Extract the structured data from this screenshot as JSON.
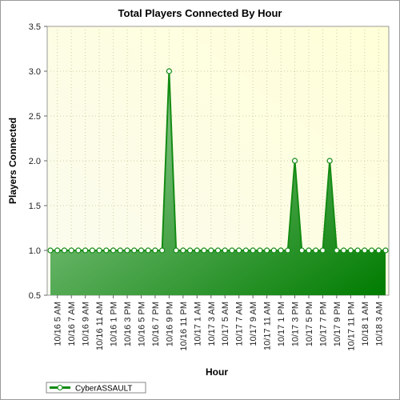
{
  "chart_data": {
    "type": "area",
    "title": "Total Players Connected By Hour",
    "xlabel": "Hour",
    "ylabel": "Players Connected",
    "ylim": [
      0.5,
      3.5
    ],
    "yticks": [
      "0.5",
      "1.0",
      "1.5",
      "2.0",
      "2.5",
      "3.0",
      "3.5"
    ],
    "x": [
      "10/16 4 AM",
      "10/16 5 AM",
      "10/16 6 AM",
      "10/16 7 AM",
      "10/16 8 AM",
      "10/16 9 AM",
      "10/16 10 AM",
      "10/16 11 AM",
      "10/16 12 PM",
      "10/16 1 PM",
      "10/16 2 PM",
      "10/16 3 PM",
      "10/16 4 PM",
      "10/16 5 PM",
      "10/16 6 PM",
      "10/16 7 PM",
      "10/16 8 PM",
      "10/16 9 PM",
      "10/16 10 PM",
      "10/16 11 PM",
      "10/17 12 AM",
      "10/17 1 AM",
      "10/17 2 AM",
      "10/17 3 AM",
      "10/17 4 AM",
      "10/17 5 AM",
      "10/17 6 AM",
      "10/17 7 AM",
      "10/17 8 AM",
      "10/17 9 AM",
      "10/17 10 AM",
      "10/17 11 AM",
      "10/17 12 PM",
      "10/17 1 PM",
      "10/17 2 PM",
      "10/17 3 PM",
      "10/17 4 PM",
      "10/17 5 PM",
      "10/17 6 PM",
      "10/17 7 PM",
      "10/17 8 PM",
      "10/17 9 PM",
      "10/17 10 PM",
      "10/17 11 PM",
      "10/18 12 AM",
      "10/18 1 AM",
      "10/18 2 AM",
      "10/18 3 AM",
      "10/18 4 AM"
    ],
    "xtick_labels": [
      "10/16 5 AM",
      "10/16 7 AM",
      "10/16 9 AM",
      "10/16 11 AM",
      "10/16 1 PM",
      "10/16 3 PM",
      "10/16 5 PM",
      "10/16 7 PM",
      "10/16 9 PM",
      "10/16 11 PM",
      "10/17 1 AM",
      "10/17 3 AM",
      "10/17 5 AM",
      "10/17 7 AM",
      "10/17 9 AM",
      "10/17 11 AM",
      "10/17 1 PM",
      "10/17 3 PM",
      "10/17 5 PM",
      "10/17 7 PM",
      "10/17 9 PM",
      "10/17 11 PM",
      "10/18 1 AM",
      "10/18 3 AM"
    ],
    "series": [
      {
        "name": "CyberASSAULT",
        "values": [
          1,
          1,
          1,
          1,
          1,
          1,
          1,
          1,
          1,
          1,
          1,
          1,
          1,
          1,
          1,
          1,
          1,
          3,
          1,
          1,
          1,
          1,
          1,
          1,
          1,
          1,
          1,
          1,
          1,
          1,
          1,
          1,
          1,
          1,
          1,
          2,
          1,
          1,
          1,
          1,
          2,
          1,
          1,
          1,
          1,
          1,
          1,
          1,
          1
        ]
      }
    ],
    "grid": true,
    "legend": "bottom-left",
    "colors": {
      "line": "#138b13",
      "fill_light": "#9fd09f",
      "fill_dark": "#078007",
      "plot_bg_left": "#fdfde9",
      "plot_bg_right": "#ffffdc"
    }
  }
}
